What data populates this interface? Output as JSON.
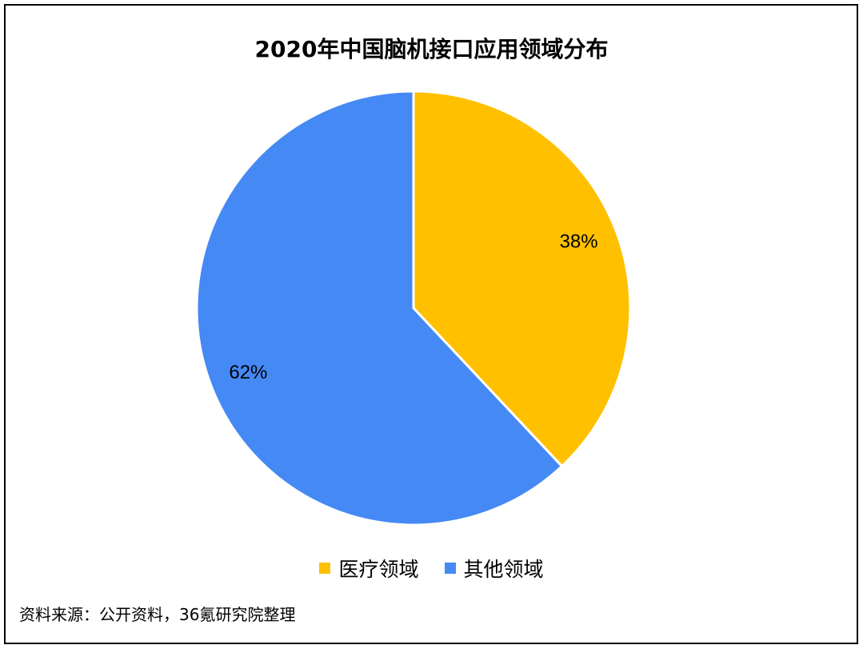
{
  "chart_data": {
    "type": "pie",
    "title": "2020年中国脑机接口应用领域分布",
    "categories": [
      "医疗领域",
      "其他领域"
    ],
    "values": [
      38,
      62
    ],
    "value_labels": [
      "38%",
      "62%"
    ],
    "colors": [
      "#FFC000",
      "#4589F5"
    ],
    "legend_placement": "bottom",
    "start_angle_deg": 0,
    "direction": "clockwise"
  },
  "source_note": "资料来源：公开资料，36氪研究院整理"
}
